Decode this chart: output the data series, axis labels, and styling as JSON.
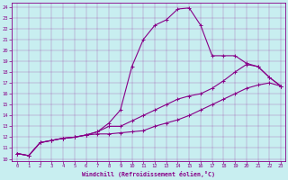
{
  "bg_color": "#c8eef0",
  "line_color": "#880088",
  "xlabel": "Windchill (Refroidissement éolien,°C)",
  "xlim_min": -0.5,
  "xlim_max": 23.4,
  "ylim_min": 9.8,
  "ylim_max": 24.4,
  "xticks": [
    0,
    1,
    2,
    3,
    4,
    5,
    6,
    7,
    8,
    9,
    10,
    11,
    12,
    13,
    14,
    15,
    16,
    17,
    18,
    19,
    20,
    21,
    22,
    23
  ],
  "yticks": [
    10,
    11,
    12,
    13,
    14,
    15,
    16,
    17,
    18,
    19,
    20,
    21,
    22,
    23,
    24
  ],
  "line1_x": [
    0,
    1,
    2,
    3,
    4,
    5,
    6,
    7,
    8,
    9,
    10,
    11,
    12,
    13,
    14,
    15,
    16,
    17,
    18,
    19,
    20,
    21,
    22,
    23
  ],
  "line1_y": [
    10.5,
    10.3,
    11.5,
    11.7,
    11.9,
    12.0,
    12.2,
    12.3,
    12.3,
    12.4,
    12.5,
    12.6,
    13.0,
    13.3,
    13.6,
    14.0,
    14.5,
    15.0,
    15.5,
    16.0,
    16.5,
    16.8,
    17.0,
    16.7
  ],
  "line2_x": [
    0,
    1,
    2,
    3,
    4,
    5,
    6,
    7,
    8,
    9,
    10,
    11,
    12,
    13,
    14,
    15,
    16,
    17,
    18,
    19,
    20,
    21,
    22,
    23
  ],
  "line2_y": [
    10.5,
    10.3,
    11.5,
    11.7,
    11.9,
    12.0,
    12.2,
    12.5,
    13.0,
    13.0,
    13.5,
    14.0,
    14.5,
    15.0,
    15.5,
    15.8,
    16.0,
    16.5,
    17.2,
    18.0,
    18.7,
    18.5,
    17.5,
    16.7
  ],
  "line3_x": [
    0,
    1,
    2,
    3,
    4,
    5,
    6,
    7,
    8,
    9,
    10,
    11,
    12,
    13,
    14,
    15,
    16,
    17,
    18,
    19,
    20,
    21,
    22,
    23
  ],
  "line3_y": [
    10.5,
    10.3,
    11.5,
    11.7,
    11.9,
    12.0,
    12.2,
    12.5,
    13.3,
    14.5,
    18.5,
    21.0,
    22.3,
    22.8,
    23.8,
    23.9,
    22.3,
    19.5,
    19.5,
    19.5,
    18.8,
    18.5,
    17.5,
    16.7
  ]
}
